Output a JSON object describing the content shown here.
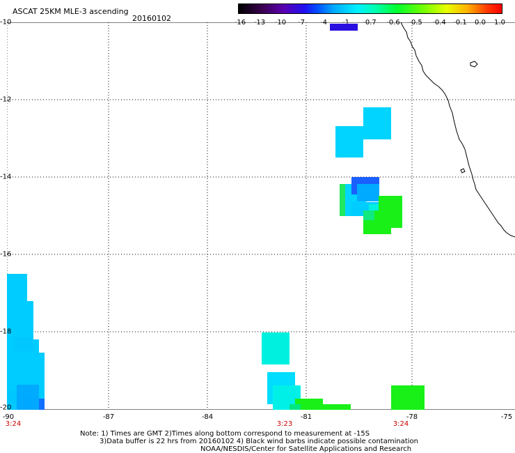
{
  "title": "ASCAT 25KM MLE-3 ascending",
  "date": "20160102",
  "colorbar": {
    "labels": [
      "-16",
      "-13",
      "-10",
      "-7",
      "-4",
      "-1",
      "-0.7",
      "-0.6",
      "-0.5",
      "-0.4",
      "-0.1",
      "0.0",
      "1.0"
    ]
  },
  "axes": {
    "x_ticks": [
      "-90",
      "-87",
      "-84",
      "-81",
      "-78",
      "-75"
    ],
    "y_ticks": [
      "-10",
      "-12",
      "-14",
      "-16",
      "-18",
      "-20"
    ],
    "time_labels": [
      "3:24",
      "3:23",
      "3:24"
    ]
  },
  "notes": {
    "line1": "Note: 1) Times are GMT 2)Times along bottom correspond to measurement at -15S",
    "line2": "3)Data buffer is 22 hrs from 20160102 4) Black wind barbs indicate possible contamination",
    "line3": "NOAA/NESDIS/Center for Satellite Applications and Research"
  },
  "colors": {
    "time_label": "#cc0000",
    "grid": "#000000",
    "coast": "#000000"
  }
}
